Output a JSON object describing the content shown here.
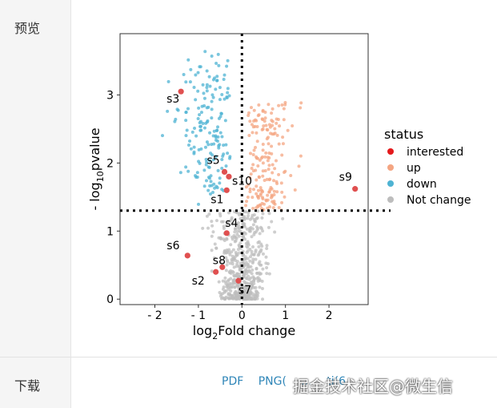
{
  "rows": {
    "preview_label": "预览",
    "download_label": "下载"
  },
  "downloads": {
    "links": [
      "PDF",
      "PNG(",
      "...",
      "ti(6"
    ]
  },
  "watermark": "掘金技术社区@微生信",
  "chart_data": {
    "type": "scatter",
    "xlabel_parts": [
      "log",
      "2",
      "Fold change"
    ],
    "ylabel_parts": [
      "- log",
      "10",
      "pvalue"
    ],
    "xlim": [
      -2.8,
      2.9
    ],
    "ylim": [
      -0.08,
      3.9
    ],
    "xticks": [
      -2,
      -1,
      0,
      1,
      2
    ],
    "xtick_labels": [
      "- 2",
      "- 1",
      "0",
      "1",
      "2"
    ],
    "yticks": [
      0,
      1,
      2,
      3
    ],
    "yticks_labels": [
      "0",
      "1",
      "2",
      "3"
    ],
    "thresholds": {
      "x": 0,
      "y": 1.3
    },
    "legend": {
      "title": "status",
      "position": "right",
      "entries": [
        {
          "label": "interested",
          "color": "#e41a1c"
        },
        {
          "label": "up",
          "color": "#f4a582"
        },
        {
          "label": "down",
          "color": "#4eb3d3"
        },
        {
          "label": "Not change",
          "color": "#bdbdbd"
        }
      ]
    },
    "interested": [
      {
        "label": "s1",
        "x": -0.35,
        "y": 1.6
      },
      {
        "label": "s2",
        "x": -0.6,
        "y": 0.4
      },
      {
        "label": "s3",
        "x": -1.4,
        "y": 3.05
      },
      {
        "label": "s4",
        "x": -0.35,
        "y": 0.97
      },
      {
        "label": "s5",
        "x": -0.4,
        "y": 1.87
      },
      {
        "label": "s6",
        "x": -1.25,
        "y": 0.64
      },
      {
        "label": "s7",
        "x": -0.08,
        "y": 0.27
      },
      {
        "label": "s8",
        "x": -0.45,
        "y": 0.47
      },
      {
        "label": "s9",
        "x": 2.6,
        "y": 1.62
      },
      {
        "label": "s10",
        "x": -0.3,
        "y": 1.8
      }
    ]
  }
}
